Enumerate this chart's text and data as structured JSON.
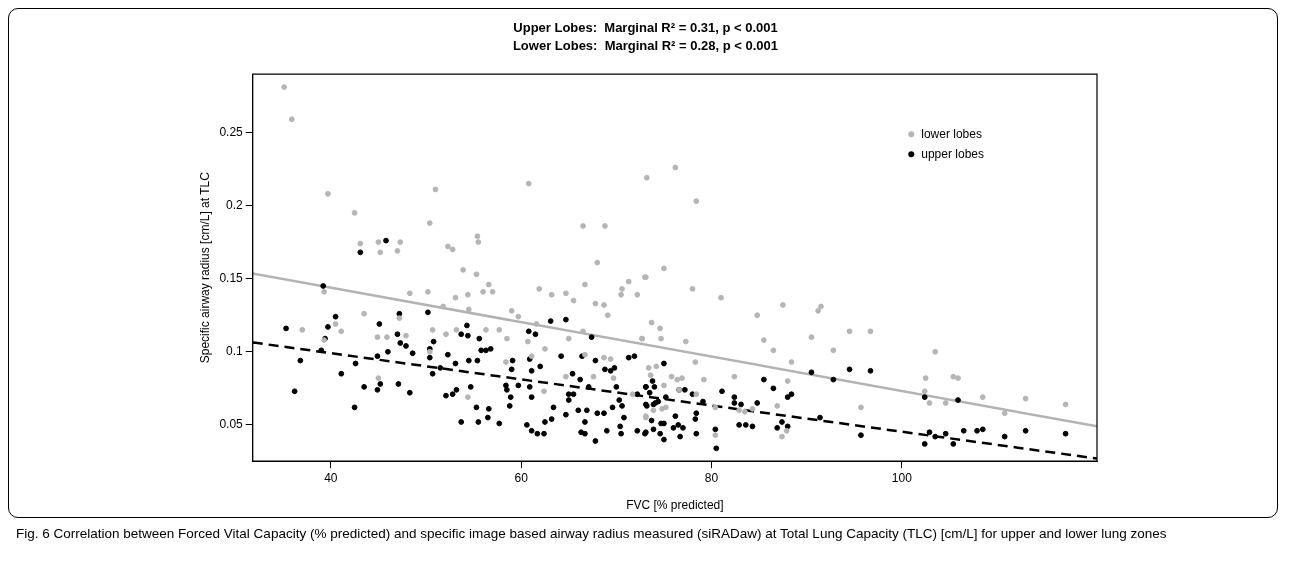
{
  "chart_data": {
    "type": "scatter",
    "title": "Upper Lobes:  Marginal R² = 0.31, p < 0.001",
    "subtitle": "Lower Lobes:  Marginal R² = 0.28, p < 0.001",
    "xlabel": "FVC [% predicted]",
    "ylabel": "Specific airway radius [cm/L] at TLC",
    "xlim": [
      31.8,
      120.5
    ],
    "xticks": [
      40,
      60,
      80,
      100
    ],
    "ylim": [
      0.0252,
      0.2898
    ],
    "yticks": [
      0.05,
      0.1,
      0.15,
      0.2,
      0.25
    ],
    "legend": "top right",
    "marker": "circle",
    "annotations": [
      "Fig. 6 Correlation between Forced Vital Capacity (% predicted) and specific image based airway radius measured (siRADaw) at Total Lung Capacity (TLC) [cm/L] for upper and lower lung zones"
    ],
    "series": [
      {
        "name": "lower lobes",
        "color": "#b5b5b5",
        "x": [
          35.1,
          35.9,
          37,
          39.7,
          42.5,
          43.1,
          45.0,
          45.2,
          47.3,
          47.0,
          51.0,
          50.4,
          52.3,
          52.8,
          55.4,
          55.5,
          53.9,
          55.3,
          60.8,
          56.6,
          48.3,
          50.2,
          53.1,
          54.4,
          56.0,
          57.0,
          39.3,
          43.5,
          47.2,
          51.8,
          54.5,
          59.0,
          59.7,
          61.9,
          63.2,
          64.7,
          65.5,
          66.5,
          68.8,
          68.0,
          66.7,
          67.8,
          68.7,
          69.1,
          70.5,
          70.6,
          71.3,
          72.2,
          73.1,
          73.2,
          40.5,
          41.1,
          44.9,
          45.9,
          47.9,
          50.7,
          52.1,
          53.2,
          56.3,
          57.7,
          58.5,
          61.6,
          62.5,
          60.7,
          65.0,
          66.5,
          66.7,
          67.6,
          68.7,
          69.4,
          72.7,
          45.0,
          50.4,
          54.4,
          58.4,
          61.1,
          62.4,
          64.7,
          69.7,
          73.1,
          71.7,
          39.3,
          76.2,
          78.4,
          73.0,
          75.0,
          78.0,
          81.0,
          73.7,
          74.6,
          74.7,
          77.3,
          72.7,
          78.3,
          84.8,
          87.5,
          85.5,
          86.5,
          88.4,
          90.5,
          91.2,
          91.5,
          92.8,
          94.5,
          96.7,
          103.5,
          102.5,
          102.4,
          102.9,
          104.6,
          105.4,
          105.9,
          73.4,
          74.2,
          73.6,
          75.0,
          75.8,
          76.4,
          76.9,
          76.6,
          79.2,
          73.1,
          73.9,
          74.8,
          75.2,
          78.4,
          80.4,
          80.4,
          82.4,
          82.9,
          83.5,
          84.3,
          86.9,
          87.9,
          87.4,
          95.7,
          88.0,
          108.5,
          110.8,
          113.0,
          117.2
        ],
        "values": [
          0.281,
          0.259,
          0.115,
          0.208,
          0.195,
          0.174,
          0.175,
          0.168,
          0.175,
          0.169,
          0.211,
          0.188,
          0.172,
          0.17,
          0.179,
          0.175,
          0.156,
          0.153,
          0.215,
          0.146,
          0.14,
          0.141,
          0.137,
          0.139,
          0.141,
          0.141,
          0.141,
          0.126,
          0.123,
          0.131,
          0.129,
          0.128,
          0.124,
          0.143,
          0.139,
          0.14,
          0.135,
          0.186,
          0.186,
          0.161,
          0.146,
          0.133,
          0.132,
          0.125,
          0.139,
          0.143,
          0.148,
          0.139,
          0.151,
          0.219,
          0.119,
          0.114,
          0.11,
          0.11,
          0.111,
          0.115,
          0.112,
          0.115,
          0.115,
          0.115,
          0.109,
          0.119,
          0.102,
          0.107,
          0.109,
          0.114,
          0.098,
          0.083,
          0.096,
          0.095,
          0.109,
          0.082,
          0.1,
          0.069,
          0.093,
          0.097,
          0.073,
          0.083,
          0.082,
          0.055,
          0.071,
          0.108,
          0.226,
          0.203,
          0.151,
          0.157,
          0.143,
          0.137,
          0.12,
          0.116,
          0.109,
          0.107,
          0.109,
          0.093,
          0.125,
          0.132,
          0.108,
          0.101,
          0.093,
          0.11,
          0.128,
          0.131,
          0.101,
          0.114,
          0.114,
          0.1,
          0.082,
          0.073,
          0.065,
          0.065,
          0.083,
          0.082,
          0.089,
          0.09,
          0.084,
          0.077,
          0.083,
          0.081,
          0.082,
          0.074,
          0.081,
          0.056,
          0.06,
          0.061,
          0.062,
          0.071,
          0.062,
          0.043,
          0.083,
          0.06,
          0.059,
          0.061,
          0.063,
          0.046,
          0.042,
          0.062,
          0.08,
          0.069,
          0.058,
          0.068,
          0.064
        ]
      },
      {
        "name": "upper lobes",
        "color": "#000000",
        "x": [
          35.3,
          36.2,
          36.8,
          39.2,
          43.1,
          45.8,
          40.5,
          39.7,
          39.4,
          39.0,
          41.1,
          42.6,
          42.5,
          43.5,
          45.1,
          44.9,
          45.2,
          44.9,
          46.0,
          47.2,
          47.0,
          47.3,
          47.9,
          47.1,
          48.3,
          48.6,
          50.2,
          50.8,
          50.4,
          50.4,
          50.7,
          51.5,
          52.3,
          52.1,
          52.8,
          53.2,
          53.7,
          53.1,
          53.7,
          54.3,
          54.4,
          54.5,
          54.7,
          55.3,
          55.4,
          55.5,
          55.6,
          55.8,
          56.3,
          56.6,
          56.5,
          56.8,
          57.7,
          58.4,
          58.5,
          58.8,
          58.9,
          59.1,
          59.0,
          59.7,
          60.6,
          60.8,
          61.5,
          60.9,
          61.1,
          60.9,
          61.1,
          61.1,
          61.7,
          62.0,
          62.4,
          62.5,
          63.1,
          64.7,
          63.2,
          63.4,
          64.2,
          64.7,
          65.0,
          65.5,
          65.4,
          65.0,
          66.0,
          66.2,
          66.3,
          66.7,
          66.4,
          66.7,
          66.9,
          67.1,
          67.4,
          67.8,
          68.0,
          67.8,
          68.8,
          68.7,
          69.0,
          69.4,
          69.6,
          69.8,
          70.0,
          70.3,
          70.4,
          70.5,
          70.6,
          70.8,
          71.3,
          71.9,
          72.2,
          73.1,
          73.1,
          73.1,
          72.2,
          73.1,
          73.5,
          73.8,
          74.0,
          75.0,
          73.9,
          73.2,
          74.1,
          74.4,
          75.2,
          73.7,
          74.7,
          75.0,
          74.6,
          73.0,
          75.0,
          73.9,
          76.0,
          76.2,
          76.5,
          76.7,
          77.0,
          77.2,
          76.6,
          78.0,
          78.4,
          78.3,
          78.4,
          79.1,
          80.4,
          80.5,
          81.1,
          82.4,
          82.4,
          82.9,
          83.1,
          83.6,
          84.3,
          84.8,
          85.5,
          86.5,
          86.9,
          87.4,
          88.0,
          88.0,
          88.4,
          90.5,
          91.4,
          92.8,
          94.5,
          96.7,
          95.7,
          102.4,
          102.9,
          102.4,
          103.5,
          104.6,
          105.4,
          105.9,
          106.5,
          107.9,
          108.5,
          110.8,
          113.0,
          117.2
        ],
        "values": [
          0.116,
          0.073,
          0.094,
          0.145,
          0.168,
          0.176,
          0.124,
          0.117,
          0.109,
          0.101,
          0.085,
          0.092,
          0.062,
          0.076,
          0.119,
          0.097,
          0.078,
          0.074,
          0.1,
          0.126,
          0.112,
          0.106,
          0.104,
          0.078,
          0.072,
          0.099,
          0.127,
          0.107,
          0.102,
          0.096,
          0.085,
          0.089,
          0.098,
          0.07,
          0.071,
          0.074,
          0.052,
          0.092,
          0.112,
          0.118,
          0.111,
          0.094,
          0.076,
          0.062,
          0.094,
          0.052,
          0.109,
          0.101,
          0.101,
          0.061,
          0.055,
          0.102,
          0.051,
          0.077,
          0.074,
          0.063,
          0.069,
          0.094,
          0.088,
          0.077,
          0.05,
          0.114,
          0.112,
          0.095,
          0.087,
          0.076,
          0.069,
          0.046,
          0.044,
          0.09,
          0.044,
          0.052,
          0.121,
          0.122,
          0.054,
          0.062,
          0.097,
          0.057,
          0.071,
          0.071,
          0.085,
          0.067,
          0.06,
          0.081,
          0.045,
          0.044,
          0.097,
          0.052,
          0.06,
          0.076,
          0.11,
          0.039,
          0.058,
          0.094,
          0.088,
          0.058,
          0.046,
          0.087,
          0.062,
          0.089,
          0.076,
          0.067,
          0.049,
          0.044,
          0.063,
          0.055,
          0.096,
          0.097,
          0.046,
          0.076,
          0.064,
          0.045,
          0.071,
          0.076,
          0.072,
          0.08,
          0.076,
          0.092,
          0.064,
          0.063,
          0.065,
          0.066,
          0.069,
          0.053,
          0.051,
          0.051,
          0.044,
          0.044,
          0.04,
          0.047,
          0.048,
          0.056,
          0.05,
          0.042,
          0.048,
          0.074,
          0.074,
          0.071,
          0.058,
          0.054,
          0.044,
          0.066,
          0.047,
          0.034,
          0.073,
          0.069,
          0.065,
          0.05,
          0.064,
          0.05,
          0.049,
          0.065,
          0.081,
          0.075,
          0.048,
          0.052,
          0.049,
          0.069,
          0.071,
          0.086,
          0.055,
          0.081,
          0.088,
          0.087,
          0.043,
          0.069,
          0.045,
          0.037,
          0.042,
          0.044,
          0.037,
          0.067,
          0.046,
          0.046,
          0.047,
          0.042,
          0.046,
          0.044
        ]
      },
      {
        "type": "line",
        "color": "#b3b3b3",
        "line_style": "solid",
        "marker": "none",
        "x": [
          31.8,
          120.5
        ],
        "values": [
          0.1535,
          0.049
        ]
      },
      {
        "type": "line",
        "color": "#000000",
        "line_style": "dashed",
        "marker": "none",
        "x": [
          31.8,
          120.5
        ],
        "values": [
          0.1064,
          0.027
        ]
      }
    ]
  }
}
